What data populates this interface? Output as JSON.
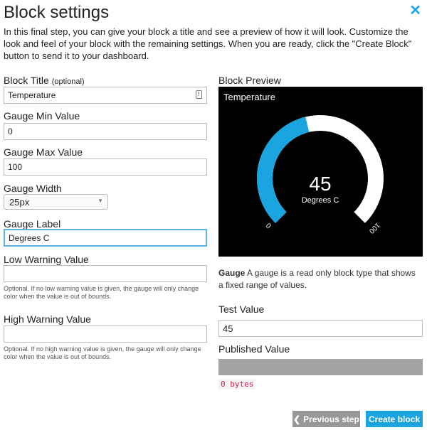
{
  "dialog": {
    "title": "Block settings",
    "intro": "In this final step, you can give your block a title and see a preview of how it will look. Customize the look and feel of your block with the remaining settings. When you are ready, click the \"Create Block\" button to send it to your dashboard.",
    "close_icon": "close-x-icon"
  },
  "form": {
    "block_title": {
      "label": "Block Title",
      "optional": "(optional)",
      "value": "Temperature"
    },
    "gauge_min": {
      "label": "Gauge Min Value",
      "value": "0"
    },
    "gauge_max": {
      "label": "Gauge Max Value",
      "value": "100"
    },
    "gauge_width": {
      "label": "Gauge Width",
      "value": "25px"
    },
    "gauge_label": {
      "label": "Gauge Label",
      "value": "Degrees C"
    },
    "low_warning": {
      "label": "Low Warning Value",
      "value": "",
      "help": "Optional. If no low warning value is given, the gauge will only change color when the value is out of bounds."
    },
    "high_warning": {
      "label": "High Warning Value",
      "value": "",
      "help": "Optional. If no high warning value is given, the gauge will only change color when the value is out of bounds."
    }
  },
  "preview": {
    "label": "Block Preview",
    "title": "Temperature",
    "value": "45",
    "unit": "Degrees C",
    "min_label": "0",
    "max_label": "100",
    "min": 0,
    "max": 100,
    "current": 45,
    "fill_color": "#1aa5e0",
    "track_color": "#ffffff"
  },
  "description": {
    "bold": "Gauge",
    "text": " A gauge is a read only block type that shows a fixed range of values."
  },
  "test_value": {
    "label": "Test Value",
    "value": "45"
  },
  "published_value": {
    "label": "Published Value",
    "bytes": "0 bytes"
  },
  "buttons": {
    "previous": "Previous step",
    "create": "Create block"
  }
}
